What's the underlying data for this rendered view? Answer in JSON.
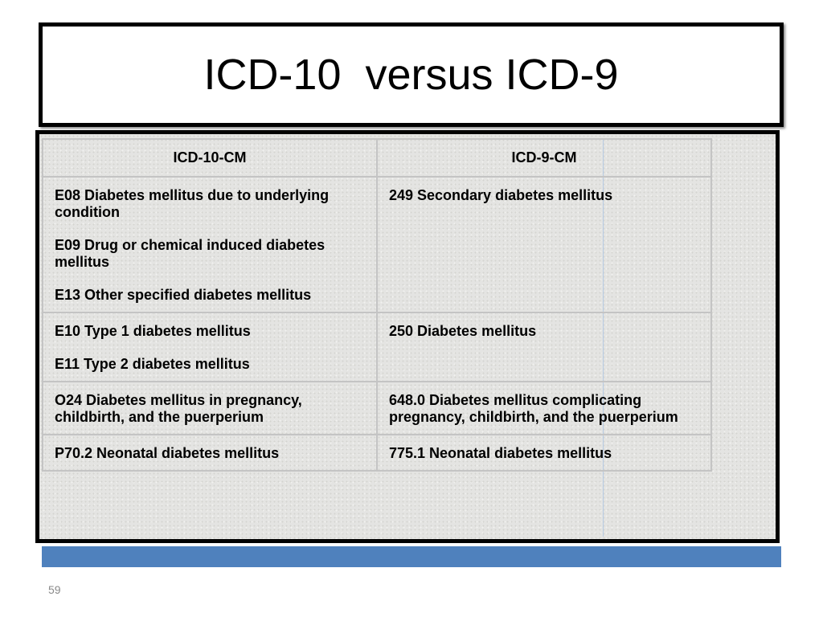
{
  "title": "ICD-10  versus ICD-9",
  "table": {
    "header": [
      "ICD-10-CM",
      "ICD-9-CM"
    ],
    "rows": [
      [
        [
          "E08 Diabetes mellitus due to underlying condition",
          "E09 Drug or chemical induced diabetes mellitus",
          "E13 Other specified diabetes mellitus"
        ],
        [
          "249 Secondary diabetes mellitus"
        ]
      ],
      [
        [
          "E10 Type 1 diabetes mellitus",
          "E11 Type 2 diabetes mellitus"
        ],
        [
          "250 Diabetes mellitus"
        ]
      ],
      [
        [
          "O24 Diabetes mellitus in pregnancy, childbirth, and the puerperium"
        ],
        [
          "648.0 Diabetes mellitus complicating pregnancy, childbirth, and the puerperium"
        ]
      ],
      [
        [
          "P70.2 Neonatal diabetes mellitus"
        ],
        [
          "775.1 Neonatal diabetes mellitus"
        ]
      ]
    ]
  },
  "page_number": "59"
}
